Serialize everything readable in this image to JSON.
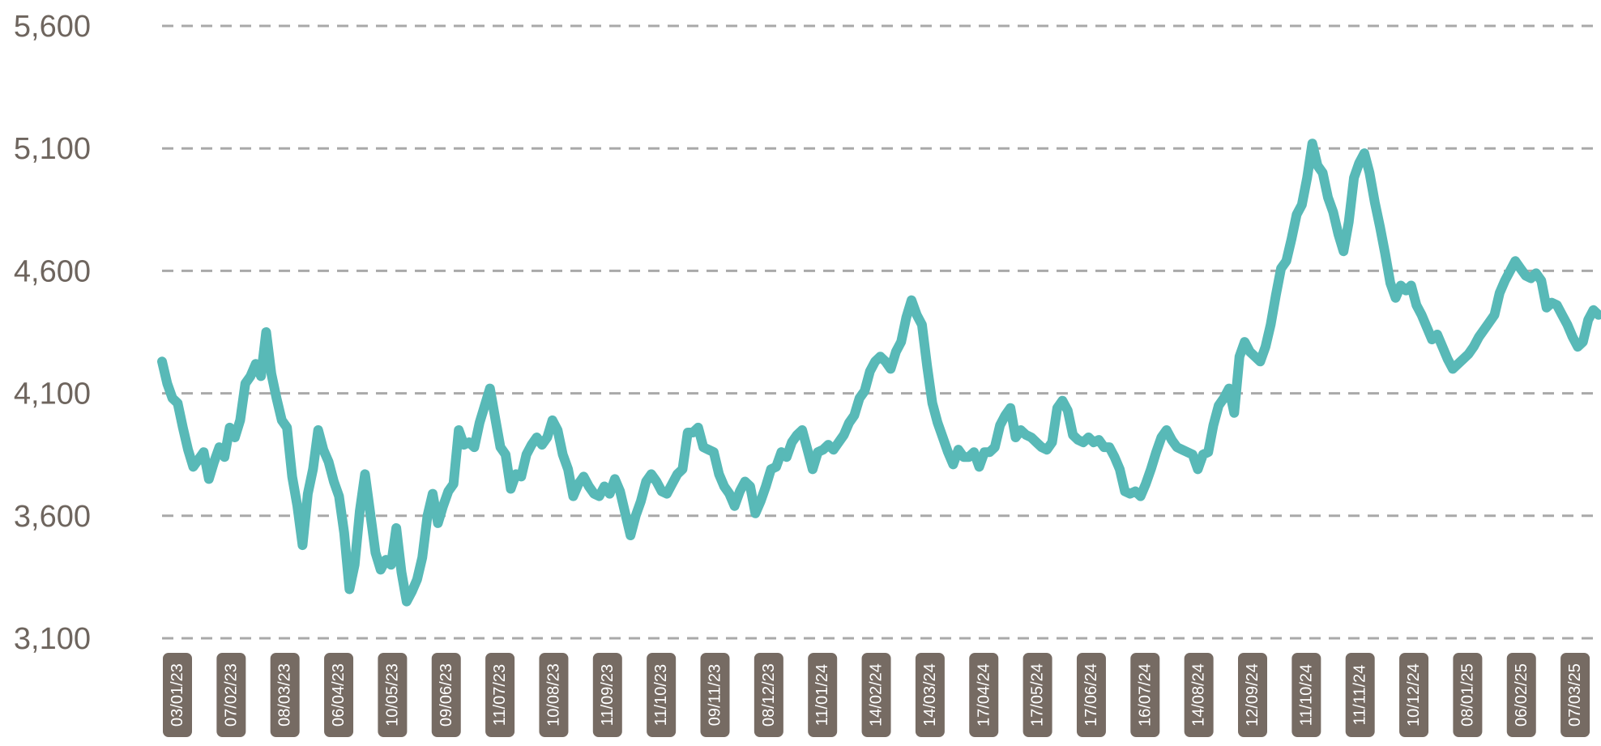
{
  "chart_data": {
    "type": "line",
    "title": "",
    "xlabel": "",
    "ylabel": "",
    "ylim": [
      3100,
      5600
    ],
    "yticks": [
      "5,600",
      "5,100",
      "4,600",
      "4,100",
      "3,600",
      "3,100"
    ],
    "ytick_values": [
      5600,
      5100,
      4600,
      4100,
      3600,
      3100
    ],
    "grid": "horizontal dashed",
    "line_color": "#58b9b7",
    "xticks": [
      "03/01/23",
      "07/02/23",
      "08/03/23",
      "06/04/23",
      "10/05/23",
      "09/06/23",
      "11/07/23",
      "10/08/23",
      "11/09/23",
      "11/10/23",
      "09/11/23",
      "08/12/23",
      "11/01/24",
      "14/02/24",
      "14/03/24",
      "17/04/24",
      "17/05/24",
      "17/06/24",
      "16/07/24",
      "14/08/24",
      "12/09/24",
      "11/10/24",
      "11/11/24",
      "10/12/24",
      "08/01/25",
      "06/02/25",
      "07/03/25"
    ],
    "series": [
      {
        "values": [
          4230,
          4140,
          4080,
          4060,
          3960,
          3870,
          3800,
          3830,
          3860,
          3750,
          3820,
          3880,
          3840,
          3960,
          3920,
          3990,
          4140,
          4170,
          4220,
          4170,
          4350,
          4180,
          4080,
          3990,
          3960,
          3760,
          3640,
          3480,
          3690,
          3790,
          3950,
          3870,
          3820,
          3740,
          3680,
          3530,
          3300,
          3400,
          3620,
          3770,
          3610,
          3450,
          3380,
          3420,
          3400,
          3550,
          3370,
          3250,
          3290,
          3340,
          3430,
          3600,
          3690,
          3570,
          3640,
          3700,
          3730,
          3950,
          3890,
          3900,
          3880,
          3980,
          4050,
          4120,
          4000,
          3880,
          3850,
          3710,
          3770,
          3760,
          3850,
          3890,
          3920,
          3890,
          3920,
          3990,
          3950,
          3850,
          3790,
          3680,
          3730,
          3760,
          3720,
          3690,
          3680,
          3720,
          3690,
          3750,
          3700,
          3610,
          3520,
          3600,
          3660,
          3740,
          3770,
          3740,
          3700,
          3690,
          3730,
          3770,
          3790,
          3940,
          3940,
          3960,
          3880,
          3870,
          3860,
          3770,
          3720,
          3690,
          3640,
          3700,
          3740,
          3720,
          3610,
          3660,
          3720,
          3790,
          3800,
          3860,
          3840,
          3900,
          3930,
          3950,
          3870,
          3790,
          3860,
          3870,
          3890,
          3870,
          3900,
          3930,
          3980,
          4010,
          4080,
          4110,
          4190,
          4230,
          4250,
          4230,
          4200,
          4270,
          4310,
          4410,
          4480,
          4420,
          4380,
          4210,
          4060,
          3980,
          3920,
          3860,
          3810,
          3870,
          3840,
          3840,
          3860,
          3800,
          3860,
          3860,
          3880,
          3970,
          4010,
          4040,
          3920,
          3950,
          3930,
          3920,
          3900,
          3880,
          3870,
          3900,
          4040,
          4070,
          4030,
          3930,
          3910,
          3900,
          3920,
          3900,
          3910,
          3880,
          3880,
          3840,
          3790,
          3700,
          3690,
          3700,
          3680,
          3730,
          3790,
          3860,
          3920,
          3950,
          3910,
          3880,
          3870,
          3860,
          3850,
          3790,
          3850,
          3860,
          3970,
          4050,
          4080,
          4120,
          4020,
          4250,
          4310,
          4270,
          4250,
          4230,
          4290,
          4380,
          4500,
          4610,
          4640,
          4730,
          4830,
          4870,
          4980,
          5120,
          5030,
          5000,
          4900,
          4840,
          4750,
          4680,
          4800,
          4980,
          5040,
          5080,
          5000,
          4880,
          4780,
          4670,
          4550,
          4490,
          4540,
          4520,
          4540,
          4460,
          4420,
          4370,
          4320,
          4340,
          4290,
          4240,
          4200,
          4220,
          4240,
          4260,
          4290,
          4330,
          4360,
          4390,
          4420,
          4510,
          4560,
          4600,
          4640,
          4610,
          4580,
          4570,
          4590,
          4560,
          4450,
          4470,
          4460,
          4420,
          4380,
          4330,
          4290,
          4310,
          4400,
          4440,
          4420
        ]
      }
    ]
  }
}
